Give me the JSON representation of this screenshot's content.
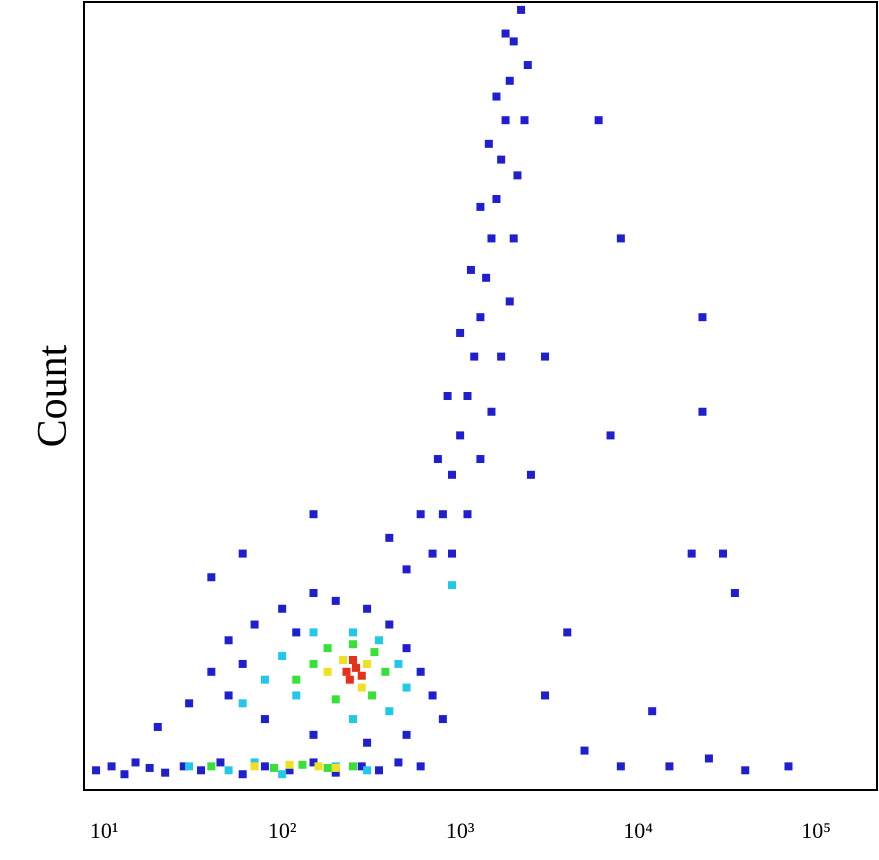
{
  "chart_data": {
    "type": "scatter",
    "ylabel": "Count",
    "xscale": "log",
    "xlim": [
      7.7,
      220000
    ],
    "ylim": [
      0,
      1000
    ],
    "xticks": [
      {
        "value": 10,
        "label": "10¹"
      },
      {
        "value": 100,
        "label": "10²"
      },
      {
        "value": 1000,
        "label": "10³"
      },
      {
        "value": 10000,
        "label": "10⁴"
      },
      {
        "value": 100000,
        "label": "10⁵"
      }
    ],
    "series": [
      {
        "color": "#1f1fd0",
        "x": [
          9,
          11,
          13,
          15,
          18,
          22,
          28,
          35,
          45,
          60,
          80,
          110,
          150,
          200,
          280,
          350,
          450,
          600,
          20,
          30,
          40,
          50,
          70,
          100,
          150,
          200,
          300,
          400,
          500,
          600,
          700,
          800,
          500,
          300,
          150,
          80,
          50,
          60,
          120,
          700,
          800,
          900,
          1000,
          1100,
          1200,
          1300,
          1400,
          1500,
          1600,
          1700,
          1800,
          1900,
          2000,
          2200,
          900,
          1100,
          1300,
          1500,
          1700,
          1900,
          2000,
          2100,
          2300,
          2400,
          600,
          750,
          850,
          1000,
          1150,
          1300,
          1450,
          1600,
          1800,
          500,
          400,
          3000,
          5000,
          8000,
          15000,
          25000,
          40000,
          70000,
          12000,
          20000,
          30000,
          23000,
          23000,
          8000,
          6000,
          3000,
          2500,
          35000,
          7000,
          4000,
          150,
          40,
          60
        ],
        "y": [
          25,
          30,
          20,
          35,
          28,
          22,
          30,
          25,
          35,
          20,
          30,
          25,
          35,
          22,
          30,
          25,
          35,
          30,
          80,
          110,
          150,
          190,
          210,
          230,
          250,
          240,
          230,
          210,
          180,
          150,
          120,
          90,
          70,
          60,
          70,
          90,
          120,
          160,
          200,
          300,
          350,
          400,
          450,
          500,
          550,
          600,
          650,
          700,
          750,
          800,
          850,
          900,
          950,
          990,
          300,
          350,
          420,
          480,
          550,
          620,
          700,
          780,
          850,
          920,
          350,
          420,
          500,
          580,
          660,
          740,
          820,
          880,
          960,
          280,
          320,
          120,
          50,
          30,
          30,
          40,
          25,
          30,
          100,
          300,
          300,
          480,
          600,
          700,
          850,
          550,
          400,
          250,
          450,
          200,
          350,
          270,
          300
        ]
      },
      {
        "color": "#22c8e8",
        "x": [
          30,
          50,
          70,
          100,
          200,
          300,
          60,
          80,
          100,
          150,
          250,
          350,
          450,
          500,
          400,
          250,
          120,
          900
        ],
        "y": [
          30,
          25,
          35,
          20,
          30,
          25,
          110,
          140,
          170,
          200,
          200,
          190,
          160,
          130,
          100,
          90,
          120,
          260
        ]
      },
      {
        "color": "#3ae03a",
        "x": [
          40,
          90,
          130,
          180,
          250,
          120,
          150,
          180,
          250,
          330,
          380,
          320,
          200
        ],
        "y": [
          30,
          28,
          32,
          28,
          30,
          140,
          160,
          180,
          185,
          175,
          150,
          120,
          115
        ]
      },
      {
        "color": "#f0e020",
        "x": [
          70,
          110,
          160,
          200,
          180,
          220,
          300,
          280
        ],
        "y": [
          30,
          32,
          30,
          28,
          150,
          165,
          160,
          130
        ]
      },
      {
        "color": "#e83018",
        "x": [
          230,
          260,
          240,
          280,
          250
        ],
        "y": [
          150,
          155,
          140,
          145,
          165
        ]
      }
    ]
  }
}
